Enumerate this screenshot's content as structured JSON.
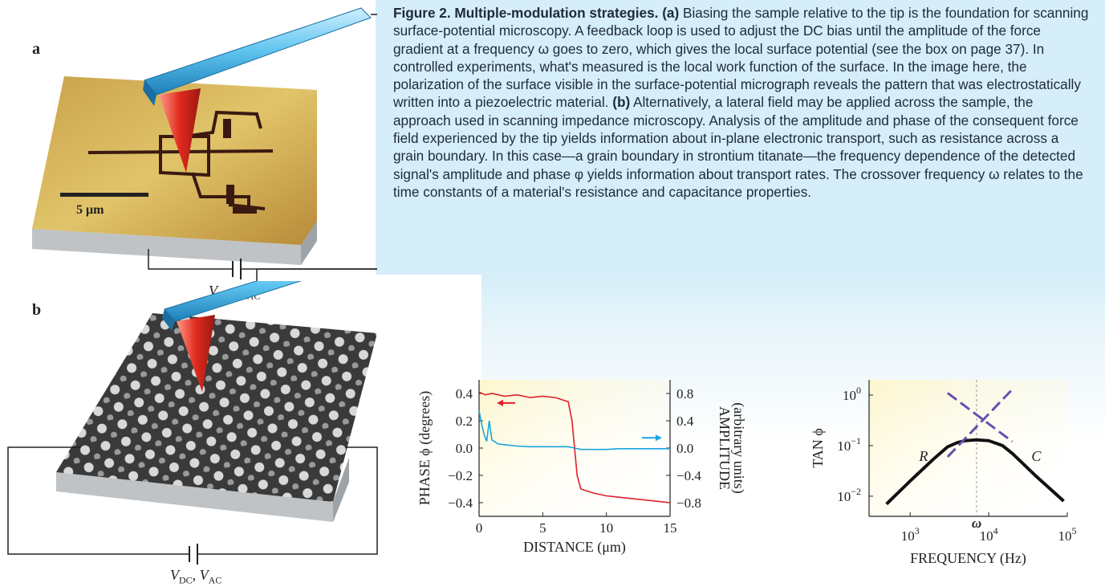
{
  "figure": {
    "caption": {
      "title": "Figure 2. Multiple-modulation strategies.",
      "parts": [
        {
          "label": "(a)",
          "text": " Biasing the sample relative to the tip is the foundation for scanning surface-potential microscopy. A feedback loop is used to adjust the DC bias until the amplitude of the force gradient at a frequency ω goes to zero, which gives the local surface potential (see the box on page 37). In controlled experiments, what's measured is the local work function of the surface. In the image here, the polarization of the surface visible in the surface-potential micrograph reveals the pattern that was electrostatically written into a piezoelectric material. "
        },
        {
          "label": "(b)",
          "text": " Alternatively, a lateral field may be applied across the sample, the approach used in scanning impedance microscopy. Analysis of the amplitude and phase of the consequent force field experienced by the tip yields information about in-plane electronic transport, such as resistance across a grain boundary. In this case—a grain boundary in strontium titanate—the frequency dependence of the detected signal's amplitude and phase φ yields information about transport rates. The crossover frequency ω relates to the time constants of a material's resistance and capacitance properties."
        }
      ]
    },
    "panel_a": {
      "letter": "a",
      "scale_bar": "5 μm",
      "bias_label": "VDC, VAC"
    },
    "panel_b": {
      "letter": "b",
      "bias_label": "VDC, VAC"
    }
  },
  "chart_data": [
    {
      "type": "line",
      "xlabel": "DISTANCE (μm)",
      "ylabel": "PHASE ϕ (degrees)",
      "y2label_line1": "AMPLITUDE",
      "y2label_line2": "(arbitrary units)",
      "xlim": [
        0,
        15
      ],
      "ylim": [
        -0.5,
        0.5
      ],
      "y2lim": [
        -1.0,
        1.0
      ],
      "x_ticks": [
        "0",
        "5",
        "10",
        "15"
      ],
      "y_ticks": [
        "0.4",
        "0.2",
        "0.0",
        "−0.2",
        "−0.4"
      ],
      "y2_ticks": [
        "0.8",
        "0.4",
        "0.0",
        "−0.4",
        "−0.8"
      ],
      "series": [
        {
          "axis": "left",
          "color": "#e0202a",
          "x": [
            0,
            0.5,
            1,
            2,
            3,
            4,
            5,
            6,
            7,
            7.3,
            7.5,
            7.7,
            8,
            9,
            10,
            11,
            12,
            13,
            14,
            15
          ],
          "y": [
            0.41,
            0.39,
            0.4,
            0.38,
            0.39,
            0.37,
            0.38,
            0.37,
            0.34,
            0.2,
            0.0,
            -0.2,
            -0.3,
            -0.33,
            -0.35,
            -0.36,
            -0.37,
            -0.38,
            -0.39,
            -0.4
          ]
        },
        {
          "axis": "right",
          "color": "#1aa4e0",
          "x": [
            0,
            0.2,
            0.4,
            0.6,
            0.8,
            1,
            1.5,
            2,
            3,
            4,
            5,
            6,
            7,
            7.5,
            8,
            9,
            10,
            11,
            12,
            13,
            14,
            15
          ],
          "y": [
            0.55,
            0.35,
            0.2,
            0.1,
            0.4,
            0.12,
            0.06,
            0.05,
            0.03,
            0.02,
            0.02,
            0.02,
            0.02,
            0.0,
            -0.02,
            -0.02,
            -0.02,
            -0.01,
            -0.01,
            -0.01,
            -0.01,
            -0.01
          ]
        }
      ]
    },
    {
      "type": "line",
      "xlabel": "FREQUENCY (Hz)",
      "ylabel": "TAN ϕ",
      "log_x": true,
      "log_y": true,
      "xlim": [
        300,
        100000
      ],
      "ylim": [
        0.004,
        2
      ],
      "x_ticks": [
        "10^3",
        "10^4",
        "10^5"
      ],
      "y_ticks": [
        "10^0",
        "10^−1",
        "10^−2"
      ],
      "annotations": [
        "R",
        "C",
        "ω"
      ],
      "crossover": 7000,
      "series": [
        {
          "color": "#111111",
          "x": [
            500,
            1000,
            2000,
            3000,
            4000,
            5000,
            7000,
            10000,
            15000,
            20000,
            40000,
            90000
          ],
          "y": [
            0.007,
            0.02,
            0.055,
            0.095,
            0.115,
            0.125,
            0.13,
            0.125,
            0.1,
            0.07,
            0.025,
            0.008
          ]
        },
        {
          "color": "#6a4fb0",
          "dashed": true,
          "x": [
            3000,
            20000
          ],
          "y": [
            1.1,
            0.12
          ]
        },
        {
          "color": "#6a4fb0",
          "dashed": true,
          "x": [
            3000,
            20000
          ],
          "y": [
            0.06,
            1.3
          ]
        }
      ]
    }
  ]
}
